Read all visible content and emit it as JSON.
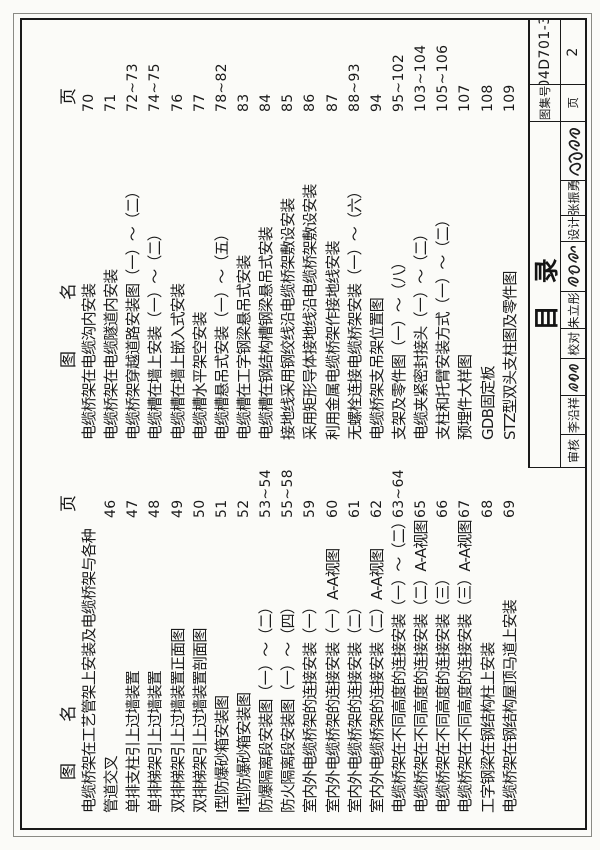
{
  "titleblock": {
    "title": "目录",
    "atlas_no_label": "图集号",
    "atlas_no": "04D701-3",
    "page_label": "页",
    "page_no": "2",
    "crew": [
      {
        "label": "审核",
        "name": "李沿祥"
      },
      {
        "label": "校对",
        "name": "朱立彤"
      },
      {
        "label": "设计",
        "name": "张振勇"
      }
    ]
  },
  "toc": {
    "col_headers": {
      "fig": "图",
      "name": "名",
      "page": "页"
    },
    "left_rows": [
      {
        "name": "电缆桥架在工艺管架上安装及电缆桥架与各种",
        "page": ""
      },
      {
        "name": "管道交叉",
        "page": "46"
      },
      {
        "name": "单排支柱引上过墙装置",
        "page": "47"
      },
      {
        "name": "单排梯架引上过墙装置",
        "page": "48"
      },
      {
        "name": "双排梯架引上过墙装置正面图",
        "page": "49"
      },
      {
        "name": "双排梯架引上过墙装置剖面图",
        "page": "50"
      },
      {
        "name": "Ⅰ型防爆砂箱安装图",
        "page": "51"
      },
      {
        "name": "Ⅱ型防爆砂箱安装图",
        "page": "52"
      },
      {
        "name": "防爆隔离段安装图（一）～（二）",
        "page": "53~54"
      },
      {
        "name": "防火隔离段安装图（一）～（四）",
        "page": "55~58"
      },
      {
        "name": "室内外电缆桥架的连接安装（一）",
        "page": "59"
      },
      {
        "name": "室内外电缆桥架的连接安装（一）A-A视图",
        "page": "60"
      },
      {
        "name": "室内外电缆桥架的连接安装（二）",
        "page": "61"
      },
      {
        "name": "室内外电缆桥架的连接安装（二）A-A视图",
        "page": "62"
      },
      {
        "name": "电缆桥架在不同高度的连接安装（一）～（二）",
        "page": "63~64"
      },
      {
        "name": "电缆桥架在不同高度的连接安装（二）A-A视图",
        "page": "65"
      },
      {
        "name": "电缆桥架在不同高度的连接安装（三）",
        "page": "66"
      },
      {
        "name": "电缆桥架在不同高度的连接安装（三）A-A视图",
        "page": "67"
      },
      {
        "name": "工字钢梁在钢结构柱上安装",
        "page": "68"
      },
      {
        "name": "电缆桥架在钢结构屋顶马道上安装",
        "page": "69"
      }
    ],
    "right_rows": [
      {
        "name": "电缆桥架在电缆沟内安装",
        "page": "70"
      },
      {
        "name": "电缆桥架在电缆隧道内安装",
        "page": "71"
      },
      {
        "name": "电缆桥架穿越道路安装图（一）～（二）",
        "page": "72~73"
      },
      {
        "name": "电缆槽在墙上安装（一）～（二）",
        "page": "74~75"
      },
      {
        "name": "电缆槽在墙上嵌入式安装",
        "page": "76"
      },
      {
        "name": "电缆槽水平架空安装",
        "page": "77"
      },
      {
        "name": "电缆槽悬吊式安装（一）～（五）",
        "page": "78~82"
      },
      {
        "name": "电缆槽在工字钢梁悬吊式安装",
        "page": "83"
      },
      {
        "name": "电缆槽在钢结构槽钢梁悬吊式安装",
        "page": "84"
      },
      {
        "name": "接地线采用钢绞线沿电缆桥架敷设安装",
        "page": "85"
      },
      {
        "name": "采用矩形导体接地线沿电缆桥架敷设安装",
        "page": "86"
      },
      {
        "name": "利用金属电缆桥架作接地线安装",
        "page": "87"
      },
      {
        "name": "无螺栓连接电缆桥架安装（一）～（六）",
        "page": "88~93"
      },
      {
        "name": "电缆桥架支吊架位置图",
        "page": "94"
      },
      {
        "name": "支架及零件图（一）～（八）",
        "page": "95~102"
      },
      {
        "name": "电缆夹紧密封接头（一）～（二）",
        "page": "103~104"
      },
      {
        "name": "支柱和托臂安装方式（一）～（二）",
        "page": "105~106"
      },
      {
        "name": "预埋件大样图",
        "page": "107"
      },
      {
        "name": "GDB固定板",
        "page": "108"
      },
      {
        "name": "STZ型双头支柱图及零件图",
        "page": "109"
      }
    ]
  }
}
